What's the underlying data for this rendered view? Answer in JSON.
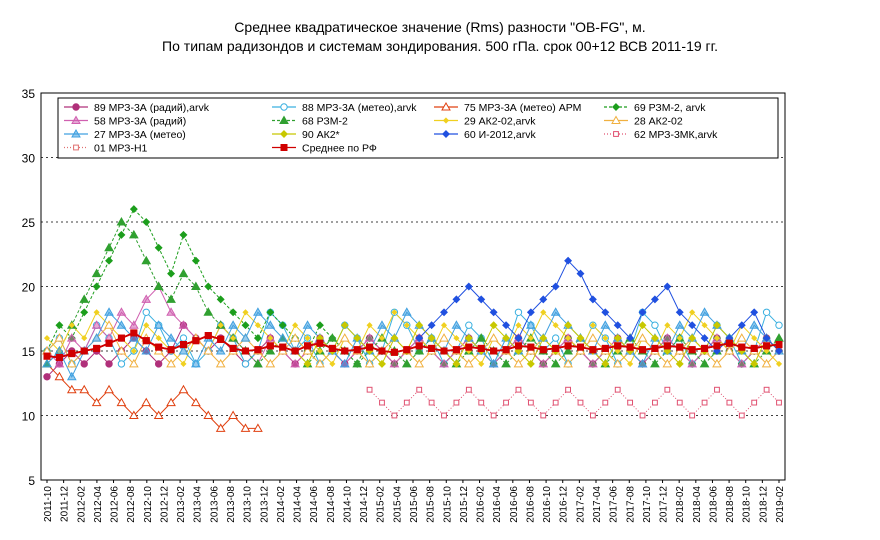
{
  "chart_data": {
    "type": "line",
    "title_line1": "Среднее квадратическое значение (Rms) разности \"OB-FG\", м.",
    "title_line2": "По типам радизондов и системам зондирования. 500 гПа. срок 00+12 ВСВ 2011-19 гг.",
    "xlabel": "",
    "ylabel": "",
    "ylim": [
      5,
      35
    ],
    "y_ticks": [
      "5",
      "10",
      "15",
      "20",
      "25",
      "30",
      "35"
    ],
    "x_tick_labels": [
      "2011-10",
      "2011-12",
      "2012-02",
      "2012-04",
      "2012-06",
      "2012-08",
      "2012-10",
      "2012-12",
      "2013-02",
      "2013-04",
      "2013-06",
      "2013-08",
      "2013-10",
      "2013-12",
      "2014-02",
      "2014-04",
      "2014-06",
      "2014-08",
      "2014-10",
      "2014-12",
      "2015-02",
      "2015-04",
      "2015-06",
      "2015-08",
      "2015-10",
      "2015-12",
      "2016-02",
      "2016-04",
      "2016-06",
      "2016-08",
      "2016-10",
      "2016-12",
      "2017-02",
      "2017-04",
      "2017-06",
      "2017-08",
      "2017-10",
      "2017-12",
      "2018-02",
      "2018-04",
      "2018-06",
      "2018-08",
      "2018-10",
      "2018-12",
      "2019-02"
    ],
    "grid": "horizontal dotted",
    "legend_position": "top",
    "series": [
      {
        "name": "89 МРЗ-3А (радий),arvk",
        "color": "#b0307a",
        "marker": "circle",
        "dash": "solid",
        "values": [
          13,
          14,
          15,
          14,
          15,
          14,
          15,
          16,
          15,
          14,
          15,
          17,
          16,
          15,
          16,
          15,
          14,
          15,
          16,
          15,
          14,
          15,
          16,
          15,
          14,
          15,
          16,
          15,
          14,
          15,
          16,
          15,
          14,
          15,
          16,
          15,
          14,
          15,
          16,
          15,
          14,
          15,
          16,
          15,
          14,
          15,
          16,
          15,
          14,
          15,
          16,
          15,
          14,
          15,
          16,
          15,
          14,
          15,
          16,
          15
        ]
      },
      {
        "name": "88 МРЗ-3А (метео),arvk",
        "color": "#3ab0e0",
        "marker": "circle-open",
        "dash": "solid",
        "values": [
          15,
          16,
          14,
          15,
          17,
          16,
          14,
          15,
          18,
          17,
          15,
          16,
          14,
          15,
          17,
          16,
          14,
          15,
          18,
          17,
          15,
          16,
          14,
          15,
          17,
          16,
          14,
          15,
          18,
          17,
          15,
          16,
          14,
          15,
          17,
          16,
          14,
          15,
          18,
          17,
          15,
          16,
          14,
          15,
          17,
          16,
          14,
          15,
          18,
          17,
          15,
          16,
          14,
          15,
          17,
          16,
          14,
          15,
          18,
          17
        ]
      },
      {
        "name": "75 МРЗ-3А (метео) АРМ",
        "color": "#e04010",
        "marker": "triangle-open",
        "dash": "solid",
        "values": [
          14,
          13,
          12,
          12,
          11,
          12,
          11,
          10,
          11,
          10,
          11,
          12,
          11,
          10,
          9,
          10,
          9,
          9,
          null,
          null,
          null,
          null,
          null,
          null,
          null,
          null,
          null,
          null,
          null,
          null,
          null,
          null,
          null,
          null,
          null,
          null,
          null,
          null,
          null,
          null,
          null,
          null,
          null,
          null,
          null,
          null,
          null,
          null,
          null,
          null,
          null,
          null,
          null,
          null,
          null,
          null,
          null,
          null,
          null,
          null
        ]
      },
      {
        "name": "69 РЗМ-2, arvk",
        "color": "#1c9e1c",
        "marker": "diamond",
        "dash": "dashed",
        "values": [
          15,
          17,
          16,
          18,
          20,
          22,
          24,
          26,
          25,
          23,
          21,
          24,
          22,
          20,
          19,
          18,
          17,
          16,
          18,
          17,
          16,
          15,
          17,
          16,
          15,
          14,
          16,
          15,
          14,
          15,
          16,
          15,
          14,
          15,
          16,
          15,
          14,
          15,
          16,
          15,
          14,
          15,
          16,
          15,
          14,
          15,
          16,
          15,
          14,
          15,
          16,
          15,
          14,
          15,
          16,
          15,
          14,
          15,
          16,
          15
        ]
      },
      {
        "name": "58 МРЗ-3А (радий)",
        "color": "#d060b0",
        "marker": "triangle",
        "dash": "solid",
        "values": [
          15,
          14,
          16,
          15,
          17,
          16,
          18,
          17,
          19,
          20,
          18,
          17,
          16,
          15,
          17,
          16,
          15,
          14,
          16,
          15,
          14,
          15,
          16,
          15,
          14,
          15,
          16,
          15,
          14,
          15,
          16,
          15,
          14,
          15,
          16,
          15,
          14,
          15,
          16,
          15,
          14,
          15,
          16,
          15,
          14,
          15,
          16,
          15,
          14,
          15,
          16,
          15,
          14,
          15,
          16,
          15,
          14,
          15,
          16,
          15
        ]
      },
      {
        "name": "68 РЗМ-2",
        "color": "#30a030",
        "marker": "triangle-filled",
        "dash": "dashed",
        "values": [
          14,
          15,
          17,
          19,
          21,
          23,
          25,
          24,
          22,
          20,
          19,
          21,
          20,
          18,
          17,
          16,
          15,
          14,
          15,
          16,
          15,
          14,
          15,
          16,
          15,
          14,
          15,
          16,
          15,
          14,
          15,
          16,
          15,
          14,
          15,
          16,
          15,
          14,
          15,
          16,
          15,
          14,
          15,
          16,
          15,
          14,
          15,
          16,
          15,
          14,
          15,
          16,
          15,
          14,
          15,
          16,
          15,
          14,
          15,
          16
        ]
      },
      {
        "name": "29 АК2-02,arvk",
        "color": "#f0d020",
        "marker": "diamond-small",
        "dash": "solid",
        "values": [
          16,
          15,
          17,
          16,
          18,
          17,
          16,
          15,
          17,
          16,
          15,
          14,
          16,
          15,
          17,
          16,
          18,
          17,
          16,
          15,
          17,
          16,
          15,
          14,
          16,
          15,
          17,
          16,
          18,
          17,
          16,
          15,
          17,
          16,
          15,
          14,
          16,
          15,
          17,
          16,
          18,
          17,
          16,
          15,
          17,
          16,
          15,
          14,
          16,
          15,
          17,
          16,
          18,
          17,
          16,
          15,
          17,
          16,
          15,
          14
        ]
      },
      {
        "name": "28 АК2-02",
        "color": "#f0b040",
        "marker": "triangle-open",
        "dash": "solid",
        "values": [
          15,
          16,
          14,
          15,
          16,
          17,
          15,
          14,
          16,
          15,
          14,
          15,
          16,
          15,
          14,
          15,
          16,
          15,
          14,
          15,
          16,
          15,
          14,
          15,
          16,
          15,
          14,
          15,
          16,
          15,
          14,
          15,
          16,
          15,
          14,
          15,
          16,
          15,
          14,
          15,
          16,
          15,
          14,
          15,
          16,
          15,
          14,
          15,
          16,
          15,
          14,
          15,
          16,
          15,
          14,
          15,
          16,
          15,
          14,
          15
        ]
      },
      {
        "name": "27 МРЗ-3А (метео)",
        "color": "#40a0e0",
        "marker": "triangle",
        "dash": "solid",
        "values": [
          14,
          15,
          13,
          15,
          16,
          18,
          17,
          16,
          15,
          17,
          16,
          15,
          14,
          16,
          15,
          17,
          16,
          18,
          17,
          16,
          15,
          17,
          16,
          15,
          14,
          16,
          15,
          17,
          16,
          18,
          17,
          16,
          15,
          17,
          16,
          15,
          14,
          16,
          15,
          17,
          16,
          18,
          17,
          16,
          15,
          17,
          16,
          15,
          14,
          16,
          15,
          17,
          16,
          18,
          17,
          16,
          15,
          17,
          16,
          15
        ]
      },
      {
        "name": "90 АК2*",
        "color": "#c8c800",
        "marker": "diamond",
        "dash": "solid",
        "values": [
          null,
          null,
          null,
          null,
          null,
          null,
          null,
          null,
          null,
          null,
          null,
          null,
          null,
          null,
          null,
          null,
          null,
          null,
          null,
          null,
          15,
          14,
          16,
          15,
          17,
          16,
          15,
          14,
          16,
          15,
          17,
          16,
          15,
          14,
          16,
          15,
          17,
          16,
          15,
          14,
          16,
          15,
          17,
          16,
          15,
          14,
          16,
          15,
          17,
          16,
          15,
          14,
          16,
          15,
          17,
          16,
          15,
          14,
          16,
          15
        ]
      },
      {
        "name": "60 И-2012,arvk",
        "color": "#2050e0",
        "marker": "diamond",
        "dash": "solid",
        "values": [
          null,
          null,
          null,
          null,
          null,
          null,
          null,
          null,
          null,
          null,
          null,
          null,
          null,
          null,
          null,
          null,
          null,
          null,
          null,
          null,
          null,
          null,
          null,
          null,
          null,
          null,
          null,
          null,
          null,
          null,
          16,
          17,
          18,
          19,
          20,
          19,
          18,
          17,
          16,
          18,
          19,
          20,
          22,
          21,
          19,
          18,
          17,
          16,
          18,
          19,
          20,
          18,
          17,
          16,
          15,
          16,
          17,
          18,
          16,
          15
        ]
      },
      {
        "name": "62 МРЗ-3МК,arvk",
        "color": "#e05070",
        "marker": "square-open",
        "dash": "dotted",
        "values": [
          null,
          null,
          null,
          null,
          null,
          null,
          null,
          null,
          null,
          null,
          null,
          null,
          null,
          null,
          null,
          null,
          null,
          null,
          null,
          null,
          null,
          null,
          null,
          null,
          null,
          null,
          12,
          11,
          10,
          11,
          12,
          11,
          10,
          11,
          12,
          11,
          10,
          11,
          12,
          11,
          10,
          11,
          12,
          11,
          10,
          11,
          12,
          11,
          10,
          11,
          12,
          11,
          10,
          11,
          12,
          11,
          10,
          11,
          12,
          11
        ]
      },
      {
        "name": "01 МРЗ-Н1",
        "color": "#e07070",
        "marker": "square-open",
        "dash": "dotted",
        "values": [
          null,
          null,
          null,
          null,
          null,
          null,
          null,
          null,
          null,
          null,
          null,
          null,
          null,
          null,
          null,
          null,
          null,
          null,
          null,
          null,
          null,
          null,
          null,
          null,
          null,
          null,
          null,
          null,
          null,
          null,
          null,
          null,
          null,
          null,
          null,
          null,
          null,
          null,
          null,
          null,
          null,
          null,
          null,
          null,
          null,
          null,
          null,
          null,
          null,
          null,
          null,
          null,
          null,
          null,
          null,
          null,
          null,
          null,
          null,
          null
        ]
      },
      {
        "name": "Среднее по РФ",
        "color": "#d00000",
        "marker": "square",
        "dash": "solid",
        "values": [
          14.6,
          14.5,
          14.8,
          15.0,
          15.2,
          15.6,
          16.0,
          16.4,
          15.8,
          15.3,
          15.1,
          15.5,
          15.8,
          16.2,
          15.9,
          15.2,
          15.0,
          15.1,
          15.4,
          15.3,
          15.0,
          15.4,
          15.6,
          15.2,
          15.0,
          15.1,
          15.3,
          15.0,
          14.9,
          15.1,
          15.4,
          15.2,
          15.0,
          15.1,
          15.3,
          15.2,
          15.0,
          15.1,
          15.4,
          15.3,
          15.1,
          15.2,
          15.4,
          15.3,
          15.1,
          15.2,
          15.4,
          15.3,
          15.1,
          15.2,
          15.4,
          15.3,
          15.1,
          15.2,
          15.4,
          15.6,
          15.3,
          15.2,
          15.4,
          15.5
        ]
      }
    ]
  }
}
